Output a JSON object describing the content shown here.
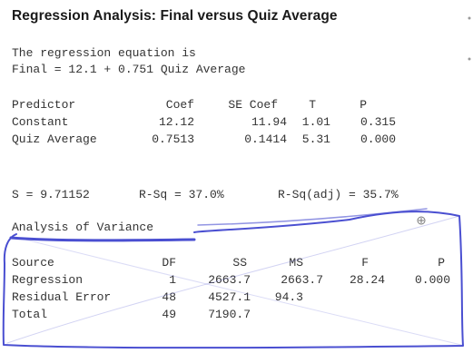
{
  "title": "Regression Analysis: Final versus Quiz Average",
  "equation": {
    "line1": "The regression equation is",
    "line2": "Final = 12.1 + 0.751 Quiz Average"
  },
  "coef_table": {
    "headers": [
      "Predictor",
      "Coef",
      "SE Coef",
      "T",
      "P"
    ],
    "rows": [
      [
        "Constant",
        "12.12",
        "11.94",
        "1.01",
        "0.315"
      ],
      [
        "Quiz Average",
        "0.7513",
        "0.1414",
        "5.31",
        "0.000"
      ]
    ]
  },
  "fit_stats": {
    "s": "S = 9.71152",
    "rsq": "R-Sq = 37.0%",
    "rsq_adj": "R-Sq(adj) = 35.7%"
  },
  "anova": {
    "heading": "Analysis of Variance",
    "headers": [
      "Source",
      "DF",
      "SS",
      "MS",
      "F",
      "P"
    ],
    "rows": [
      [
        "Regression",
        "1",
        "2663.7",
        "2663.7",
        "28.24",
        "0.000"
      ],
      [
        "Residual Error",
        "48",
        "4527.1",
        "94.3",
        "",
        ""
      ],
      [
        "Total",
        "49",
        "7190.7",
        "",
        "",
        ""
      ]
    ]
  },
  "annotation_color": "#4a4fd1"
}
